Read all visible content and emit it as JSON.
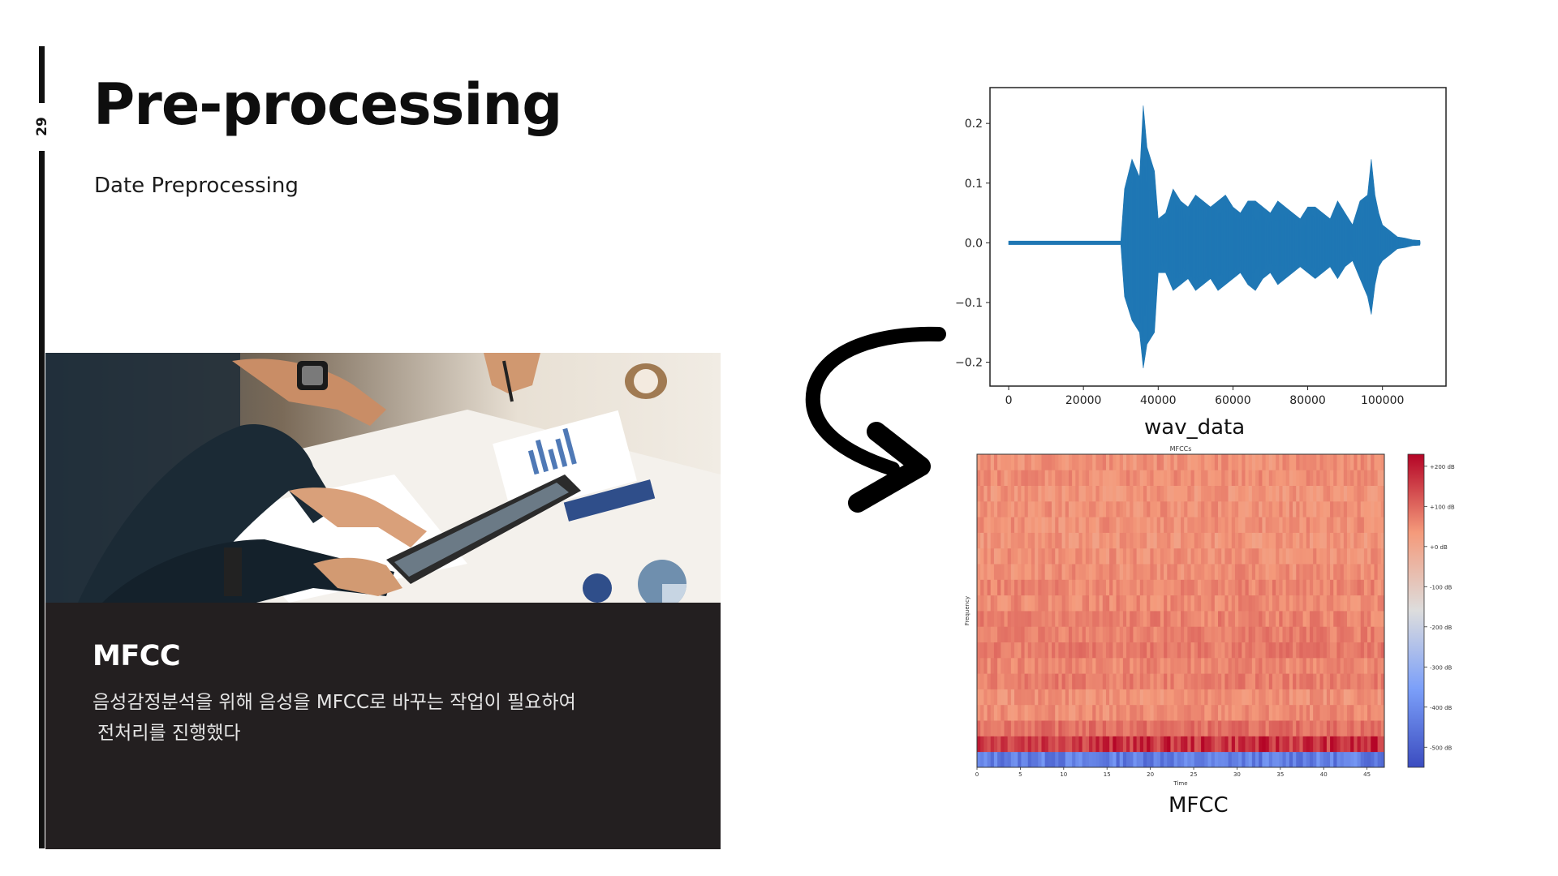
{
  "slide": {
    "page_number": "29",
    "title": "Pre-processing",
    "subtitle": "Date Preprocessing"
  },
  "photo": {
    "subject": "business-meeting-photo"
  },
  "card": {
    "title": "MFCC",
    "line1": "음성감정분석을 위해 음성을 MFCC로 바꾸는 작업이 필요하여",
    "line2": "전처리를 진행했다"
  },
  "colors": {
    "sidebar_bar": "#111111",
    "card_bg": "#231f20",
    "waveform": "#1f77b4",
    "mfcc_low": "#3b4cc0",
    "mfcc_high": "#b40426"
  },
  "chart_data": [
    {
      "type": "line",
      "title": "",
      "label": "wav_data",
      "xlabel": "",
      "ylabel": "",
      "xlim": [
        -5000,
        117000
      ],
      "ylim": [
        -0.24,
        0.26
      ],
      "xticks": [
        "0",
        "20000",
        "40000",
        "60000",
        "80000",
        "100000"
      ],
      "yticks": [
        "0.2",
        "0.1",
        "0.0",
        "−0.1",
        "−0.2"
      ],
      "envelope": {
        "x": [
          0,
          30000,
          31000,
          33000,
          35000,
          36000,
          37000,
          38000,
          39000,
          40000,
          42000,
          44000,
          46000,
          48000,
          50000,
          52000,
          54000,
          56000,
          58000,
          60000,
          62000,
          64000,
          66000,
          68000,
          70000,
          72000,
          74000,
          76000,
          78000,
          80000,
          82000,
          84000,
          86000,
          88000,
          90000,
          92000,
          94000,
          96000,
          97000,
          98000,
          99000,
          100000,
          102000,
          104000,
          106000,
          108000,
          110000
        ],
        "upper": [
          0.003,
          0.003,
          0.09,
          0.14,
          0.11,
          0.23,
          0.16,
          0.14,
          0.12,
          0.04,
          0.05,
          0.09,
          0.07,
          0.06,
          0.08,
          0.07,
          0.06,
          0.07,
          0.08,
          0.06,
          0.05,
          0.07,
          0.07,
          0.06,
          0.05,
          0.07,
          0.06,
          0.05,
          0.04,
          0.06,
          0.06,
          0.05,
          0.04,
          0.07,
          0.05,
          0.03,
          0.07,
          0.08,
          0.14,
          0.08,
          0.05,
          0.03,
          0.02,
          0.01,
          0.008,
          0.005,
          0.004
        ],
        "lower": [
          -0.003,
          -0.003,
          -0.09,
          -0.13,
          -0.15,
          -0.21,
          -0.17,
          -0.16,
          -0.15,
          -0.05,
          -0.05,
          -0.08,
          -0.07,
          -0.06,
          -0.08,
          -0.07,
          -0.06,
          -0.08,
          -0.07,
          -0.06,
          -0.05,
          -0.07,
          -0.08,
          -0.06,
          -0.05,
          -0.07,
          -0.06,
          -0.05,
          -0.04,
          -0.05,
          -0.06,
          -0.05,
          -0.04,
          -0.06,
          -0.04,
          -0.03,
          -0.06,
          -0.09,
          -0.12,
          -0.07,
          -0.04,
          -0.03,
          -0.02,
          -0.01,
          -0.008,
          -0.005,
          -0.004
        ]
      }
    },
    {
      "type": "heatmap",
      "title": "MFCCs",
      "label": "MFCC",
      "xlabel": "Time",
      "ylabel": "Frequency",
      "xticks": [
        "0",
        "5",
        "10",
        "15",
        "20",
        "25",
        "30",
        "35",
        "40",
        "45"
      ],
      "xlim": [
        0,
        47
      ],
      "colorbar_ticks": [
        "+200 dB",
        "+100 dB",
        "+0 dB",
        "-100 dB",
        "-200 dB",
        "-300 dB",
        "-400 dB",
        "-500 dB"
      ],
      "colorbar_range": [
        -550,
        230
      ],
      "row_levels_db": [
        -430,
        170,
        90,
        50,
        45,
        70,
        60,
        75,
        70,
        65,
        55,
        60,
        50,
        45,
        40,
        45,
        45,
        40,
        50,
        45
      ]
    }
  ]
}
